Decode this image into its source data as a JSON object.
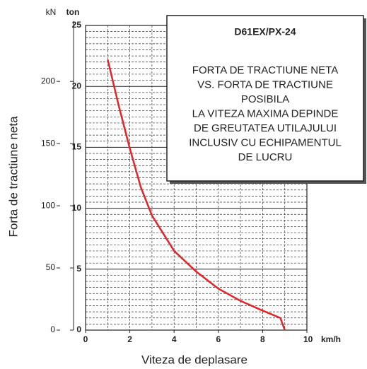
{
  "chart_data": {
    "type": "line",
    "y_label": "Forta de tractiune neta",
    "x_label": "Viteza de deplasare",
    "x_unit": "km/h",
    "y_unit": "ton",
    "y2_unit": "kN",
    "x": [
      1.0,
      1.5,
      2.0,
      2.5,
      3.0,
      4.0,
      5.0,
      6.0,
      7.0,
      8.0,
      8.8,
      9.0
    ],
    "series": [
      {
        "name": "D61EX/PX-24",
        "color": "#e0262b",
        "values": [
          22.2,
          18.4,
          14.9,
          11.7,
          9.4,
          6.5,
          4.8,
          3.4,
          2.4,
          1.6,
          1.0,
          0
        ]
      }
    ],
    "xlim": [
      0,
      10
    ],
    "xticks": [
      0,
      2,
      4,
      6,
      8,
      10
    ],
    "ylim": [
      0,
      25
    ],
    "yticks": [
      0,
      5,
      10,
      15,
      20,
      25
    ],
    "y2lim": [
      0,
      245
    ],
    "y2ticks": [
      0,
      50,
      100,
      150,
      200
    ],
    "grid": true,
    "box": {
      "title": "D61EX/PX-24",
      "lines": [
        "FORTA DE TRACTIUNE NETA",
        "VS. FORTA DE TRACTIUNE",
        "POSIBILA",
        "LA VITEZA MAXIMA DEPINDE",
        "DE GREUTATEA UTILAJULUI",
        "INCLUSIV CU ECHIPAMENTUL",
        "DE LUCRU"
      ]
    }
  }
}
